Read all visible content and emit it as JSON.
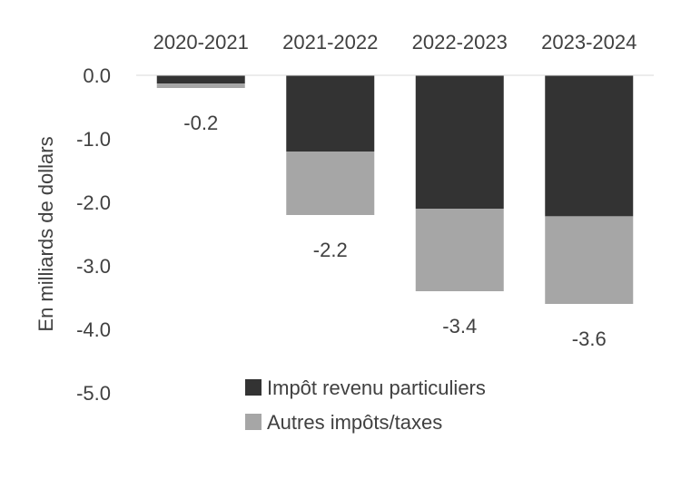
{
  "chart_data": {
    "type": "bar",
    "stacked": true,
    "categories": [
      "2020-2021",
      "2021-2022",
      "2022-2023",
      "2023-2024"
    ],
    "series": [
      {
        "name": "Impôt revenu particuliers",
        "values": [
          -0.13,
          -1.2,
          -2.1,
          -2.22
        ],
        "color": "#333333"
      },
      {
        "name": "Autres impôts/taxes",
        "values": [
          -0.07,
          -1.0,
          -1.3,
          -1.38
        ],
        "color": "#a6a6a6"
      }
    ],
    "totals": [
      -0.2,
      -2.2,
      -3.4,
      -3.6
    ],
    "total_labels": [
      "-0.2",
      "-2.2",
      "-3.4",
      "-3.6"
    ],
    "ylabel": "En milliards de dollars",
    "ylim": [
      -5.0,
      0.0
    ],
    "yticks": [
      0.0,
      -1.0,
      -2.0,
      -3.0,
      -4.0,
      -5.0
    ],
    "ytick_labels": [
      "0.0",
      "-1.0",
      "-2.0",
      "-3.0",
      "-4.0",
      "-5.0"
    ],
    "grid": false,
    "category_axis_position": "top",
    "legend_position": "bottom-right"
  }
}
